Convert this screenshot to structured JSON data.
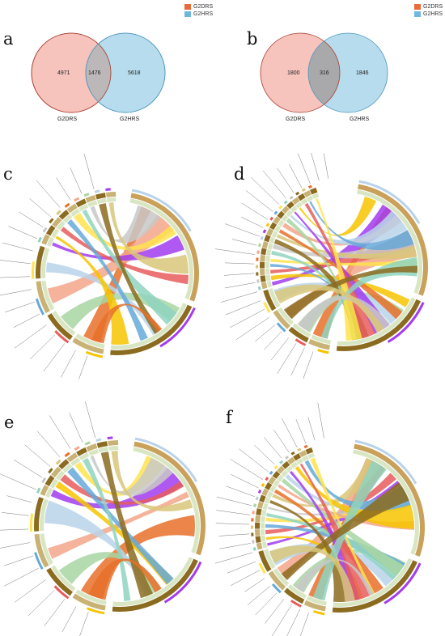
{
  "colors": {
    "G2DRS": "#e86b3a",
    "G2HRS": "#6fb7dd",
    "chord_palette": [
      "#e8702a",
      "#f3a68a",
      "#a8d5a2",
      "#b9d3ea",
      "#a23cf0",
      "#f6c400",
      "#e85c5c",
      "#66a9d8",
      "#ffe34d",
      "#8fd3c0",
      "#c8c8c8",
      "#8b6b1f",
      "#d9c77a"
    ]
  },
  "panels": {
    "a": {
      "letter": "a",
      "legend": [
        {
          "label": "G2DRS",
          "color": "#e86b3a"
        },
        {
          "label": "G2HRS",
          "color": "#6fb7dd"
        }
      ],
      "venn": {
        "left_only": "4971",
        "overlap": "1476",
        "right_only": "5618",
        "left_label": "G2DRS",
        "right_label": "G2HRS"
      }
    },
    "b": {
      "letter": "b",
      "legend": [
        {
          "label": "G2DRS",
          "color": "#e86b3a"
        },
        {
          "label": "G2HRS",
          "color": "#6fb7dd"
        }
      ],
      "venn": {
        "left_only": "1800",
        "overlap": "316",
        "right_only": "1846",
        "left_label": "G2DRS",
        "right_label": "G2HRS"
      }
    },
    "c": {
      "letter": "c"
    },
    "d": {
      "letter": "d"
    },
    "e": {
      "letter": "e"
    },
    "f": {
      "letter": "f"
    }
  }
}
